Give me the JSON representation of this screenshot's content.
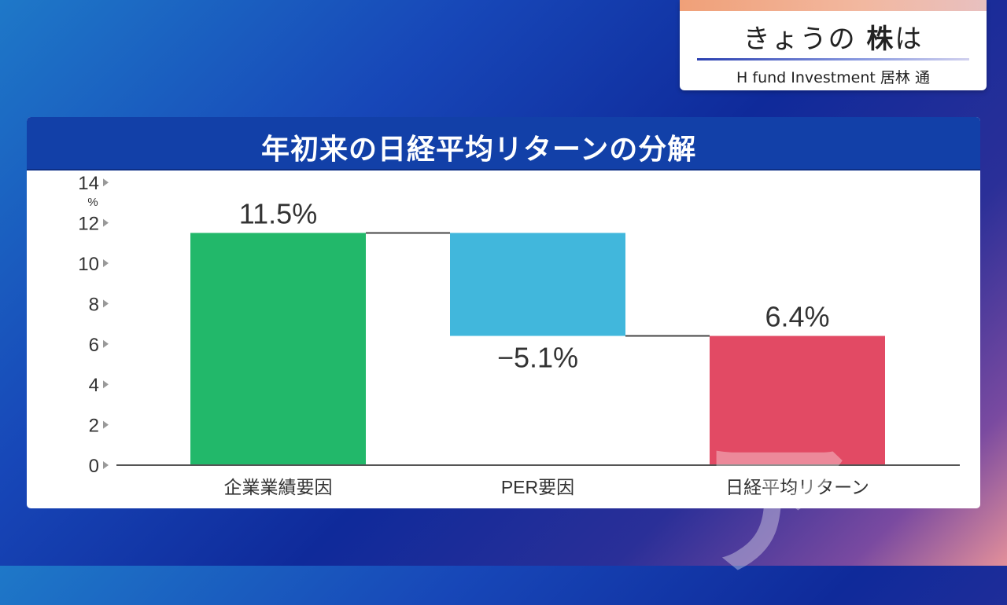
{
  "header_box": {
    "title_plain": "きょうの",
    "title_bold": "株",
    "title_tail": "は",
    "subtitle": "H fund Investment  居林 通"
  },
  "chart_data": {
    "type": "bar",
    "title": "年初来の日経平均リターンの分解",
    "ylabel": "%",
    "ylim": [
      0,
      14
    ],
    "yticks": [
      0,
      2,
      4,
      6,
      8,
      10,
      12,
      14
    ],
    "categories": [
      "企業業績要因",
      "PER要因",
      "日経平均リターン"
    ],
    "bars": [
      {
        "label": "企業業績要因",
        "start": 0,
        "end": 11.5,
        "value_label": "11.5%",
        "color": "#22b86a"
      },
      {
        "label": "PER要因",
        "start": 11.5,
        "end": 6.4,
        "value_label": "−5.1%",
        "color": "#41b7dc"
      },
      {
        "label": "日経平均リターン",
        "start": 0,
        "end": 6.4,
        "value_label": "6.4%",
        "color": "#e24a64"
      }
    ],
    "grid": false,
    "legend": "none"
  },
  "colors": {
    "header_blue": "#1240a8",
    "axis": "#555555"
  }
}
